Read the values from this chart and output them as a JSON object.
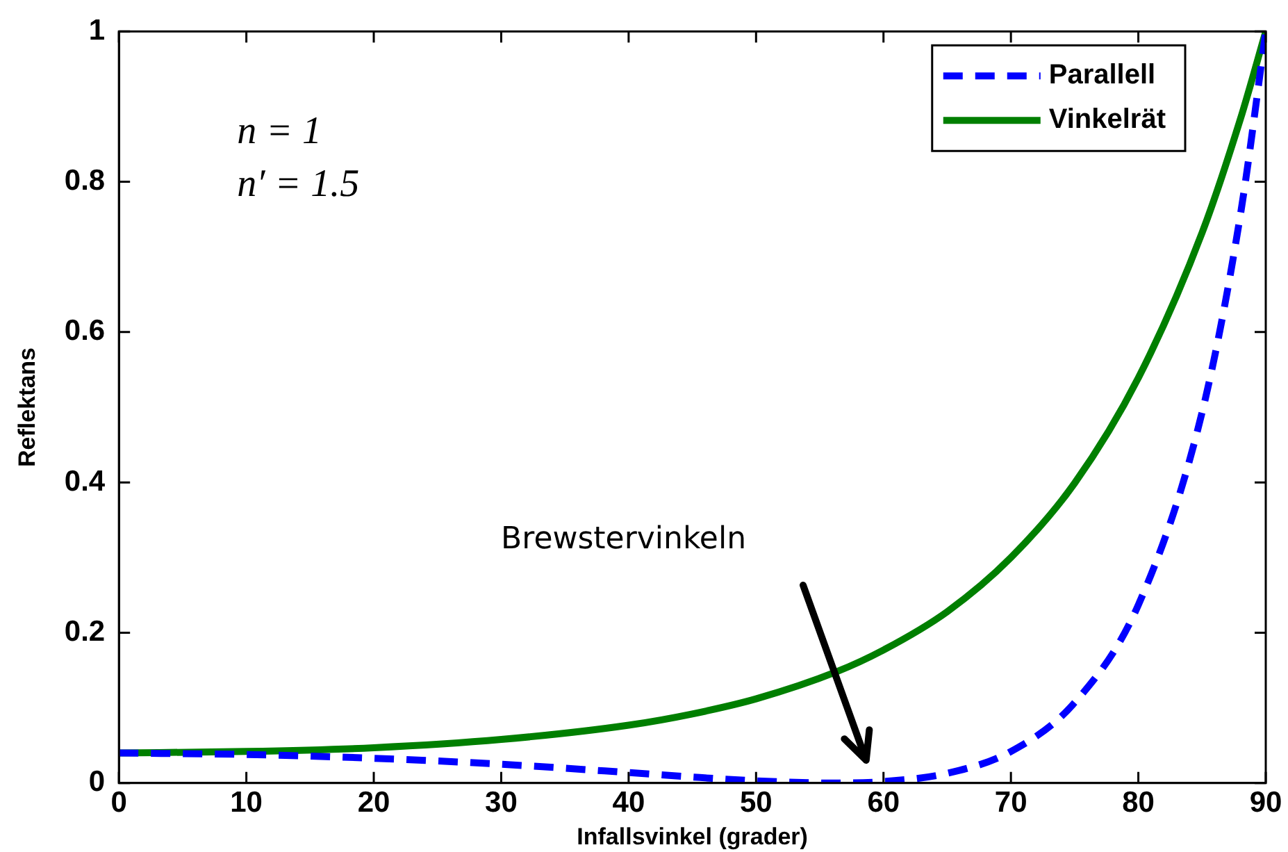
{
  "chart_data": {
    "type": "line",
    "xlabel": "Infallsvinkel (grader)",
    "ylabel": "Reflektans",
    "xlim": [
      0,
      90
    ],
    "xticks": [
      0,
      10,
      20,
      30,
      40,
      50,
      60,
      70,
      80,
      90
    ],
    "ylim": [
      0,
      1
    ],
    "yticks": [
      0,
      0.2,
      0.4,
      0.6,
      0.8,
      1
    ],
    "grid": false,
    "legend": "top right",
    "marker": "none",
    "annotations": [
      "n = 1",
      "n′ = 1.5",
      "Brewstervinkeln"
    ],
    "series": [
      {
        "name": "Parallell",
        "color": "#0000ff",
        "line_style": "dashed",
        "x": [
          0,
          10,
          20,
          30,
          40,
          45,
          50,
          56.31,
          60,
          65,
          70,
          75,
          80,
          85,
          88,
          90
        ],
        "values": [
          0.04,
          0.038,
          0.033,
          0.025,
          0.014,
          0.008,
          0.003,
          0,
          0.002,
          0.013,
          0.042,
          0.107,
          0.237,
          0.493,
          0.755,
          1
        ]
      },
      {
        "name": "Vinkelrät",
        "color": "#007f00",
        "line_style": "solid",
        "x": [
          0,
          10,
          20,
          30,
          40,
          45,
          50,
          56.31,
          60,
          65,
          70,
          75,
          80,
          85,
          88,
          90
        ],
        "values": [
          0.04,
          0.042,
          0.047,
          0.058,
          0.077,
          0.092,
          0.112,
          0.148,
          0.177,
          0.228,
          0.3,
          0.399,
          0.539,
          0.732,
          0.883,
          1
        ]
      }
    ]
  }
}
